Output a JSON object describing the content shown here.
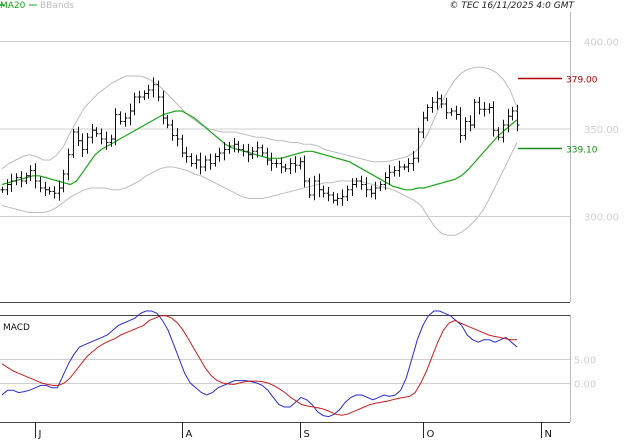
{
  "header": {
    "legend": [
      {
        "name": "MA20",
        "color": "#1aa51a"
      },
      {
        "name": "BBands",
        "color": "#bdbdbd"
      }
    ],
    "stamp": "© TEC 16/11/2025 4:0 GMT"
  },
  "colors": {
    "grid": "#cfcfcf",
    "bars": "#111111",
    "ma": "#1aa51a",
    "bands": "#bdbdbd",
    "macd": "#2a2ad0",
    "signal": "#c81e1e",
    "resistance": "#b40000",
    "support": "#159015",
    "axis_text": "#cfcfcf"
  },
  "chart_data": [
    {
      "type": "ohlc",
      "legend": [
        "MA20",
        "BBands"
      ],
      "y_ticks": [
        "400.00",
        "350.00",
        "300.00"
      ],
      "y_ticks_values": [
        400,
        350,
        300
      ],
      "ylim": [
        250,
        420
      ],
      "x_month_labels": [
        {
          "label": "J",
          "index": 7
        },
        {
          "label": "A",
          "index": 38
        },
        {
          "label": "S",
          "index": 63
        },
        {
          "label": "O",
          "index": 89
        },
        {
          "label": "N",
          "index": 114
        }
      ],
      "n_bars": 124,
      "levels": [
        {
          "label": "379.00",
          "value": 379.0,
          "color": "#b40000"
        },
        {
          "label": "339.10",
          "value": 339.1,
          "color": "#159015"
        }
      ],
      "close": [
        315,
        318,
        320,
        322,
        320,
        323,
        326,
        320,
        316,
        315,
        314,
        313,
        316,
        324,
        335,
        348,
        343,
        338,
        345,
        349,
        347,
        344,
        342,
        344,
        358,
        354,
        356,
        360,
        368,
        368,
        370,
        372,
        375,
        368,
        356,
        352,
        346,
        344,
        336,
        334,
        330,
        332,
        328,
        332,
        330,
        334,
        336,
        338,
        340,
        341,
        338,
        337,
        335,
        337,
        339,
        336,
        332,
        330,
        330,
        328,
        327,
        330,
        329,
        331,
        320,
        312,
        320,
        315,
        313,
        312,
        309,
        310,
        311,
        315,
        318,
        320,
        318,
        315,
        313,
        316,
        318,
        322,
        325,
        326,
        328,
        328,
        330,
        333,
        348,
        356,
        362,
        365,
        367,
        364,
        359,
        360,
        358,
        346,
        354,
        352,
        365,
        361,
        361,
        362,
        349,
        345,
        352,
        357,
        360,
        352
      ],
      "ohlc_count_note": "",
      "ma20": [
        318,
        319,
        320,
        321,
        322,
        323,
        323,
        322,
        321,
        320,
        319,
        318,
        320,
        325,
        330,
        335,
        338,
        340,
        342,
        344,
        346,
        348,
        350,
        352,
        354,
        356,
        358,
        359,
        360,
        360,
        358,
        356,
        353,
        350,
        347,
        344,
        341,
        339,
        338,
        337,
        336,
        335,
        334,
        333,
        333,
        333,
        334,
        335,
        336,
        337,
        337,
        336,
        335,
        334,
        333,
        332,
        331,
        329,
        327,
        325,
        323,
        321,
        319,
        317,
        316,
        315,
        315,
        316,
        316,
        317,
        318,
        319,
        320,
        321,
        323,
        326,
        330,
        334,
        338,
        342,
        346,
        349,
        352,
        355
      ],
      "bb_upper": [
        327,
        330,
        332,
        334,
        335,
        334,
        332,
        332,
        335,
        340,
        348,
        355,
        362,
        366,
        370,
        373,
        376,
        378,
        380,
        380,
        380,
        379,
        377,
        374,
        370,
        366,
        362,
        358,
        355,
        352,
        350,
        349,
        348,
        348,
        348,
        347,
        346,
        345,
        345,
        344,
        343,
        343,
        342,
        342,
        341,
        341,
        340,
        338,
        337,
        336,
        335,
        334,
        333,
        332,
        331,
        331,
        331,
        332,
        333,
        334,
        336,
        340,
        347,
        356,
        365,
        372,
        378,
        382,
        384,
        385,
        385,
        384,
        382,
        378,
        372,
        362
      ],
      "bb_lower": [
        306,
        305,
        304,
        303,
        302,
        302,
        302,
        303,
        305,
        308,
        311,
        313,
        315,
        316,
        316,
        316,
        315,
        315,
        316,
        318,
        320,
        323,
        325,
        327,
        328,
        328,
        327,
        326,
        324,
        323,
        321,
        319,
        317,
        315,
        313,
        311,
        310,
        310,
        310,
        311,
        312,
        313,
        314,
        315,
        316,
        317,
        318,
        319,
        319,
        320,
        320,
        320,
        320,
        319,
        318,
        317,
        316,
        315,
        313,
        311,
        309,
        306,
        300,
        294,
        290,
        289,
        289,
        291,
        294,
        298,
        303,
        310,
        318,
        326,
        334,
        342
      ]
    },
    {
      "type": "line",
      "title": "MACD",
      "y_ticks": [
        "5.00",
        "0.00"
      ],
      "y_ticks_values": [
        5,
        0
      ],
      "ylim": [
        -8,
        15
      ],
      "series": [
        {
          "name": "",
          "color": "#2a2ad0",
          "values": [
            -2.5,
            -1.5,
            -1.5,
            -2.0,
            -1.8,
            -1.5,
            -1.0,
            -0.5,
            -0.5,
            -1.0,
            -1.0,
            1.5,
            4.0,
            6.0,
            7.5,
            8.0,
            8.5,
            9.0,
            9.5,
            10,
            11,
            12,
            12.5,
            13,
            13.5,
            14.5,
            15,
            15,
            14.5,
            13,
            11,
            8,
            5,
            2,
            0,
            -1,
            -2,
            -2.5,
            -2,
            -1,
            -0.5,
            0,
            0.5,
            0.5,
            0.5,
            0.3,
            0,
            -0.5,
            -1.5,
            -3,
            -4.5,
            -5,
            -5,
            -4,
            -3,
            -3.5,
            -4.5,
            -6,
            -6.8,
            -7,
            -6.5,
            -5.5,
            -4,
            -3,
            -2.5,
            -2.5,
            -3,
            -3.5,
            -3,
            -2.5,
            -2.8,
            -2.5,
            -1.5,
            1.0,
            5,
            9,
            12,
            14,
            15,
            15,
            14.5,
            14,
            13,
            12.0,
            10,
            9,
            8.5,
            9.0,
            9.0,
            8.5,
            9.0,
            9.5,
            8.5,
            7.5
          ]
        },
        {
          "name": "",
          "color": "#c81e1e",
          "values": [
            4.0,
            3.2,
            2.5,
            2.0,
            1.5,
            1.0,
            0.5,
            0.0,
            -0.3,
            -0.5,
            -0.5,
            0.0,
            1.0,
            2.5,
            4.0,
            5.5,
            6.5,
            7.5,
            8.2,
            8.8,
            9.3,
            10,
            10.5,
            11,
            11.5,
            12,
            13,
            13.5,
            14,
            14,
            13.5,
            12.5,
            11,
            9,
            7,
            5,
            3,
            1.5,
            0.5,
            0,
            -0.2,
            -0.3,
            0,
            0.3,
            0.4,
            0.4,
            0.3,
            0.0,
            -0.5,
            -1.2,
            -2,
            -3,
            -3.8,
            -4.5,
            -4.8,
            -5,
            -5.2,
            -5.5,
            -6,
            -6.5,
            -6.7,
            -6.5,
            -6,
            -5.5,
            -5,
            -4.5,
            -4.2,
            -4,
            -3.8,
            -3.5,
            -3.2,
            -3.0,
            -2.8,
            -2,
            0,
            2.5,
            5.5,
            8.5,
            11,
            12.5,
            13,
            12.5,
            12,
            11.5,
            11,
            10.5,
            10,
            9.7,
            9.5,
            9.2,
            9.0,
            9.0
          ]
        }
      ]
    }
  ]
}
